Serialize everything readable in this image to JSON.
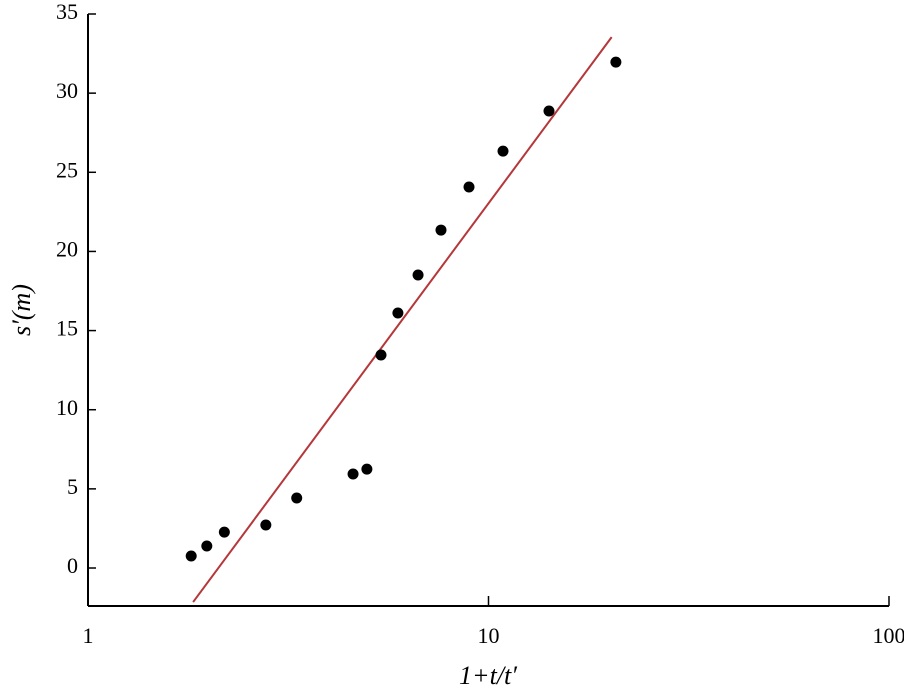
{
  "chart_data": {
    "type": "scatter",
    "xlabel": "1+t/t′",
    "ylabel": "s′(m)",
    "xscale": "log",
    "xlim": [
      1,
      100
    ],
    "xticks": [
      1,
      10,
      100
    ],
    "ylim": [
      -2.4,
      35
    ],
    "yticks": [
      0,
      5,
      10,
      15,
      20,
      25,
      30,
      35
    ],
    "points": {
      "color": "#000000",
      "x": [
        1.81,
        1.98,
        2.19,
        2.78,
        3.32,
        4.59,
        4.97,
        5.39,
        5.94,
        6.67,
        7.61,
        8.94,
        10.87,
        14.16,
        20.8
      ],
      "y": [
        0.76,
        1.39,
        2.27,
        2.72,
        4.42,
        5.94,
        6.25,
        13.46,
        16.11,
        18.51,
        21.35,
        24.07,
        26.34,
        28.87,
        31.96
      ]
    },
    "fit_line": {
      "color": "#b5373a",
      "x": [
        1.83,
        20.3
      ],
      "y": [
        -2.15,
        33.54
      ]
    }
  }
}
